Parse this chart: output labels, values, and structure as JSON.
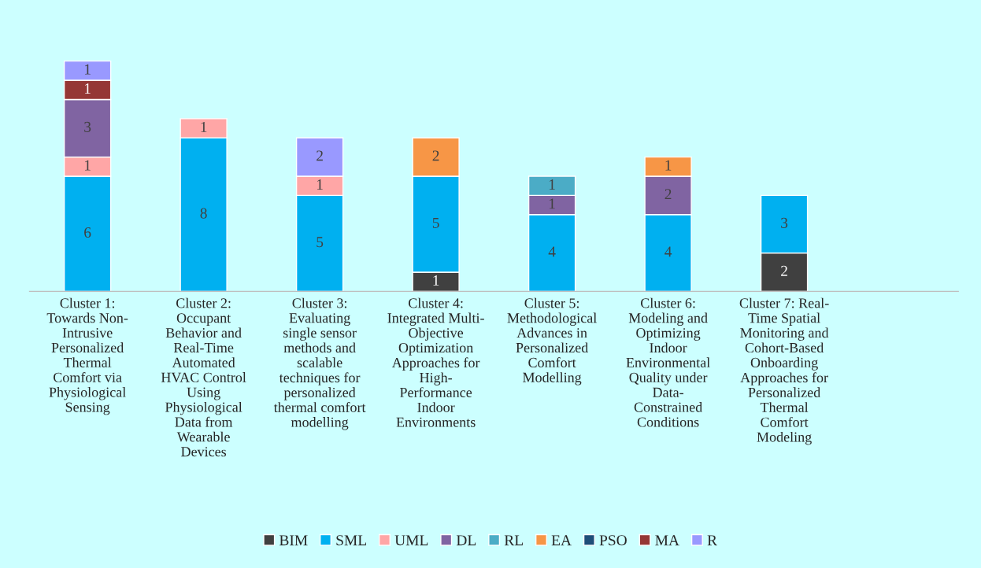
{
  "chart_data": {
    "type": "bar",
    "stacked": true,
    "data_labels": true,
    "legend": "bottom",
    "grid": false,
    "categories": [
      "Cluster 1:\nTowards Non-\nIntrusive\nPersonalized\nThermal\nComfort via\nPhysiological\nSensing",
      "Cluster 2:\nOccupant\nBehavior and\nReal-Time\nAutomated\nHVAC Control\nUsing\nPhysiological\nData from\nWearable\nDevices",
      "Cluster 3:\nEvaluating\nsingle sensor\nmethods and\nscalable\ntechniques for\npersonalized\nthermal comfort\nmodelling",
      "Cluster 4:\nIntegrated Multi-\nObjective\nOptimization\nApproaches for\nHigh-\nPerformance\nIndoor\nEnvironments",
      "Cluster 5:\nMethodological\nAdvances in\nPersonalized\nComfort\nModelling",
      "Cluster 6:\nModeling and\nOptimizing\nIndoor\nEnvironmental\nQuality under\nData-\nConstrained\nConditions",
      "Cluster 7: Real-\nTime Spatial\nMonitoring and\nCohort-Based\nOnboarding\nApproaches for\nPersonalized\nThermal\nComfort\nModeling",
      null
    ],
    "series": [
      {
        "name": "BIM",
        "color": "#404040",
        "values": [
          null,
          null,
          null,
          1,
          null,
          null,
          2,
          null
        ]
      },
      {
        "name": "SML",
        "color": "#00b0f0",
        "values": [
          6,
          8,
          5,
          5,
          4,
          4,
          3,
          null
        ]
      },
      {
        "name": "UML",
        "color": "#ffa6a6",
        "values": [
          1,
          1,
          1,
          null,
          null,
          null,
          null,
          null
        ]
      },
      {
        "name": "DL",
        "color": "#8064a2",
        "values": [
          3,
          null,
          null,
          null,
          1,
          2,
          null,
          null
        ]
      },
      {
        "name": "RL",
        "color": "#4bacc6",
        "values": [
          null,
          null,
          null,
          null,
          1,
          null,
          null,
          null
        ]
      },
      {
        "name": "EA",
        "color": "#f79646",
        "values": [
          null,
          null,
          null,
          2,
          null,
          1,
          null,
          null
        ]
      },
      {
        "name": "PSO",
        "color": "#1f4e79",
        "values": [
          null,
          null,
          null,
          null,
          null,
          null,
          null,
          null
        ]
      },
      {
        "name": "MA",
        "color": "#953735",
        "values": [
          1,
          null,
          null,
          null,
          null,
          null,
          null,
          null
        ]
      },
      {
        "name": "R",
        "color": "#9999ff",
        "values": [
          1,
          null,
          2,
          null,
          null,
          null,
          null,
          null
        ]
      }
    ]
  }
}
